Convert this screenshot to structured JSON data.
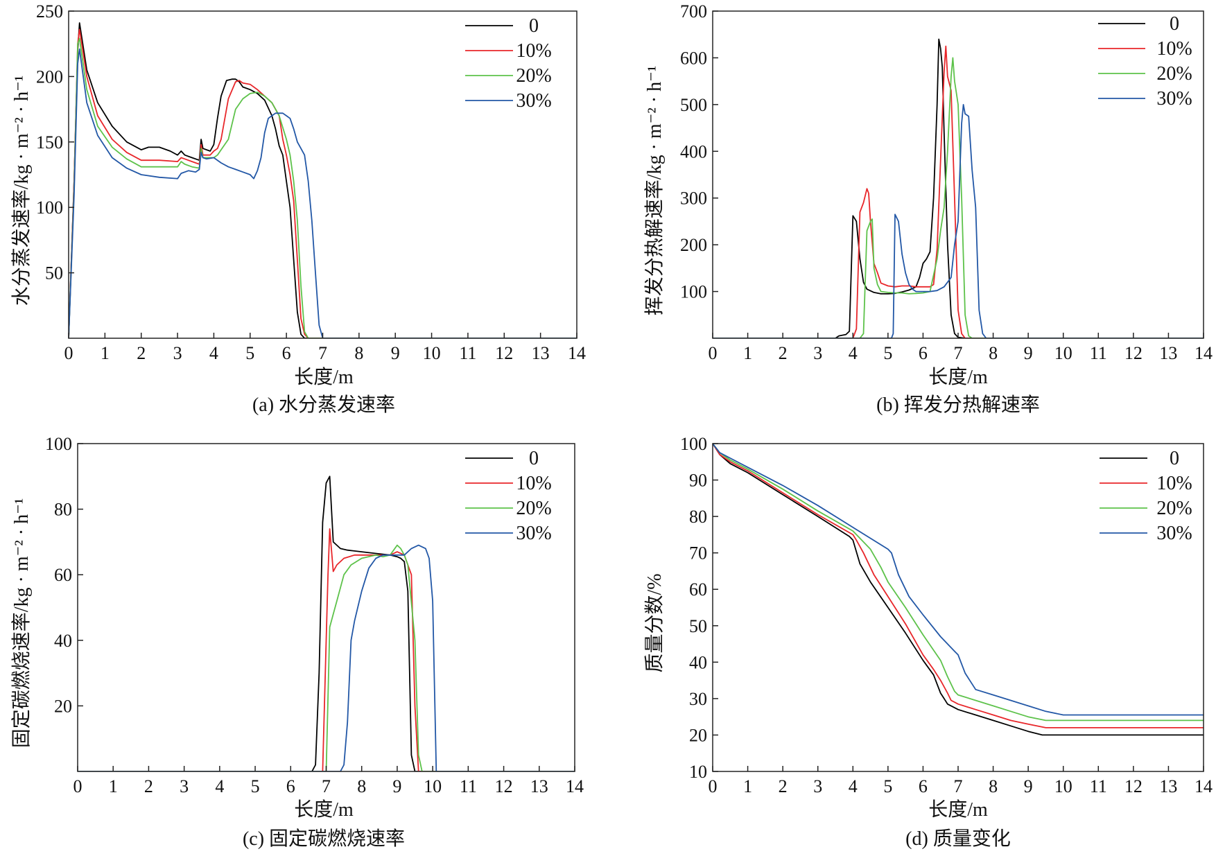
{
  "series_colors": [
    "#000000",
    "#e8262a",
    "#5dc24a",
    "#2257a6"
  ],
  "chart_data": [
    {
      "type": "line",
      "caption": "(a) 水分蒸发速率",
      "xlabel": "长度/m",
      "ylabel": "水分蒸发速率/kg · m⁻² · h⁻¹",
      "xlim": [
        0,
        14
      ],
      "ylim": [
        0,
        250
      ],
      "xticks": [
        0,
        1,
        2,
        3,
        4,
        5,
        6,
        7,
        8,
        9,
        10,
        11,
        12,
        13,
        14
      ],
      "yticks": [
        50,
        100,
        150,
        200,
        250
      ],
      "legend_position": "top-right",
      "series": [
        {
          "name": "0",
          "x": [
            0,
            0.15,
            0.25,
            0.3,
            0.5,
            0.8,
            1.2,
            1.6,
            2.0,
            2.2,
            2.5,
            2.8,
            3.0,
            3.1,
            3.2,
            3.4,
            3.6,
            3.65,
            3.7,
            3.8,
            3.9,
            4.0,
            4.1,
            4.2,
            4.35,
            4.5,
            4.6,
            4.7,
            4.8,
            5.0,
            5.2,
            5.4,
            5.6,
            5.7,
            5.8,
            5.9,
            6.0,
            6.1,
            6.2,
            6.3,
            6.4,
            6.5,
            6.8,
            14
          ],
          "y": [
            0,
            120,
            220,
            241,
            205,
            180,
            162,
            150,
            144,
            146,
            146,
            143,
            140,
            143,
            140,
            138,
            136,
            152,
            145,
            144,
            143,
            148,
            168,
            185,
            197,
            198,
            198,
            196,
            192,
            190,
            187,
            182,
            170,
            160,
            147,
            140,
            120,
            100,
            60,
            20,
            3,
            0,
            0,
            0
          ]
        },
        {
          "name": "10%",
          "x": [
            0,
            0.15,
            0.25,
            0.3,
            0.5,
            0.8,
            1.2,
            1.6,
            2.0,
            2.5,
            3.0,
            3.1,
            3.2,
            3.4,
            3.6,
            3.65,
            3.7,
            3.8,
            3.9,
            4.0,
            4.1,
            4.2,
            4.4,
            4.6,
            4.7,
            4.8,
            5.0,
            5.2,
            5.4,
            5.6,
            5.8,
            5.9,
            6.0,
            6.1,
            6.2,
            6.3,
            6.4,
            6.5,
            6.6,
            6.8,
            14
          ],
          "y": [
            0,
            120,
            225,
            236,
            200,
            170,
            152,
            142,
            136,
            136,
            135,
            138,
            137,
            135,
            133,
            148,
            140,
            140,
            140,
            143,
            145,
            152,
            183,
            196,
            197,
            195,
            194,
            190,
            185,
            180,
            170,
            152,
            140,
            125,
            105,
            60,
            15,
            3,
            0,
            0,
            0
          ]
        },
        {
          "name": "20%",
          "x": [
            0,
            0.15,
            0.25,
            0.3,
            0.5,
            0.8,
            1.2,
            1.6,
            2.0,
            2.5,
            3.0,
            3.1,
            3.2,
            3.4,
            3.6,
            3.65,
            3.7,
            3.9,
            4.0,
            4.1,
            4.2,
            4.4,
            4.6,
            4.8,
            5.0,
            5.2,
            5.4,
            5.6,
            5.8,
            6.0,
            6.1,
            6.2,
            6.3,
            6.4,
            6.5,
            6.6,
            6.7,
            6.8,
            14
          ],
          "y": [
            0,
            115,
            225,
            229,
            190,
            162,
            146,
            137,
            131,
            131,
            131,
            135,
            133,
            131,
            130,
            145,
            138,
            138,
            138,
            140,
            144,
            152,
            175,
            183,
            187,
            188,
            185,
            180,
            170,
            152,
            140,
            120,
            90,
            40,
            5,
            0,
            0,
            0,
            0
          ]
        },
        {
          "name": "30%",
          "x": [
            0,
            0.15,
            0.25,
            0.3,
            0.5,
            0.8,
            1.2,
            1.6,
            2.0,
            2.5,
            3.0,
            3.1,
            3.3,
            3.5,
            3.6,
            3.65,
            3.7,
            3.8,
            4.0,
            4.2,
            4.4,
            4.6,
            4.8,
            5.0,
            5.1,
            5.2,
            5.3,
            5.4,
            5.5,
            5.6,
            5.7,
            5.9,
            6.0,
            6.1,
            6.2,
            6.3,
            6.4,
            6.5,
            6.6,
            6.7,
            6.8,
            6.9,
            7.0,
            14
          ],
          "y": [
            0,
            110,
            210,
            221,
            180,
            155,
            138,
            130,
            125,
            123,
            122,
            126,
            128,
            127,
            129,
            142,
            138,
            137,
            138,
            134,
            131,
            129,
            127,
            125,
            122,
            128,
            138,
            157,
            168,
            170,
            172,
            172,
            170,
            168,
            160,
            150,
            145,
            140,
            120,
            90,
            50,
            10,
            0,
            0
          ]
        }
      ]
    },
    {
      "type": "line",
      "caption": "(b) 挥发分热解速率",
      "xlabel": "长度/m",
      "ylabel": "挥发分热解速率/kg · m⁻² · h⁻¹",
      "xlim": [
        0,
        14
      ],
      "ylim": [
        0,
        700
      ],
      "xticks": [
        0,
        1,
        2,
        3,
        4,
        5,
        6,
        7,
        8,
        9,
        10,
        11,
        12,
        13,
        14
      ],
      "yticks": [
        100,
        200,
        300,
        400,
        500,
        600,
        700
      ],
      "legend_position": "top-right",
      "series": [
        {
          "name": "0",
          "x": [
            0,
            3.5,
            3.6,
            3.8,
            3.9,
            4.0,
            4.1,
            4.2,
            4.3,
            4.4,
            4.6,
            4.8,
            5.0,
            5.2,
            5.4,
            5.6,
            5.8,
            5.9,
            6.0,
            6.1,
            6.2,
            6.3,
            6.4,
            6.45,
            6.5,
            6.55,
            6.6,
            6.7,
            6.8,
            6.9,
            7.0,
            7.2,
            14
          ],
          "y": [
            0,
            0,
            5,
            8,
            15,
            262,
            250,
            170,
            120,
            105,
            98,
            95,
            95,
            96,
            99,
            103,
            110,
            130,
            160,
            170,
            185,
            300,
            500,
            640,
            620,
            580,
            440,
            200,
            50,
            10,
            2,
            0,
            0
          ]
        },
        {
          "name": "10%",
          "x": [
            0,
            4.0,
            4.1,
            4.2,
            4.3,
            4.4,
            4.45,
            4.5,
            4.6,
            4.7,
            4.8,
            5.0,
            5.2,
            5.4,
            5.6,
            5.8,
            6.0,
            6.2,
            6.3,
            6.4,
            6.5,
            6.6,
            6.65,
            6.7,
            6.8,
            6.9,
            7.0,
            7.1,
            7.2,
            14
          ],
          "y": [
            0,
            0,
            20,
            270,
            290,
            320,
            310,
            250,
            160,
            140,
            118,
            112,
            110,
            112,
            112,
            110,
            110,
            110,
            115,
            190,
            380,
            570,
            625,
            560,
            530,
            300,
            60,
            10,
            0,
            0
          ]
        },
        {
          "name": "20%",
          "x": [
            0,
            4.2,
            4.3,
            4.4,
            4.5,
            4.55,
            4.6,
            4.7,
            4.8,
            5.0,
            5.2,
            5.4,
            5.6,
            5.8,
            6.0,
            6.2,
            6.4,
            6.5,
            6.6,
            6.7,
            6.8,
            6.85,
            6.9,
            6.95,
            7.0,
            7.1,
            7.2,
            7.3,
            7.4,
            14
          ],
          "y": [
            0,
            0,
            10,
            230,
            250,
            255,
            150,
            115,
            100,
            98,
            97,
            97,
            95,
            96,
            97,
            100,
            170,
            230,
            280,
            400,
            560,
            600,
            550,
            525,
            500,
            300,
            50,
            5,
            0,
            0
          ]
        },
        {
          "name": "30%",
          "x": [
            0,
            5.1,
            5.15,
            5.2,
            5.3,
            5.4,
            5.5,
            5.6,
            5.7,
            5.8,
            6.0,
            6.2,
            6.4,
            6.6,
            6.8,
            6.9,
            7.0,
            7.1,
            7.15,
            7.2,
            7.3,
            7.4,
            7.5,
            7.6,
            7.7,
            7.8,
            14
          ],
          "y": [
            0,
            0,
            10,
            265,
            250,
            180,
            140,
            115,
            105,
            100,
            100,
            100,
            102,
            110,
            130,
            200,
            250,
            460,
            500,
            480,
            475,
            360,
            280,
            60,
            10,
            0,
            0
          ]
        }
      ]
    },
    {
      "type": "line",
      "caption": "(c) 固定碳燃烧速率",
      "xlabel": "长度/m",
      "ylabel": "固定碳燃烧速率/kg · m⁻² · h⁻¹",
      "xlim": [
        0,
        14
      ],
      "ylim": [
        0,
        100
      ],
      "xticks": [
        0,
        1,
        2,
        3,
        4,
        5,
        6,
        7,
        8,
        9,
        10,
        11,
        12,
        13,
        14
      ],
      "yticks": [
        20,
        40,
        60,
        80,
        100
      ],
      "legend_position": "top-right",
      "series": [
        {
          "name": "0",
          "x": [
            0,
            6.6,
            6.7,
            6.8,
            6.9,
            7.0,
            7.1,
            7.2,
            7.4,
            7.6,
            8.0,
            8.4,
            8.8,
            9.0,
            9.1,
            9.2,
            9.3,
            9.4,
            9.5,
            14
          ],
          "y": [
            0,
            0,
            2,
            30,
            76,
            88,
            90,
            70,
            68,
            67.5,
            67,
            66.5,
            66,
            65.5,
            65,
            64,
            55,
            5,
            0,
            0
          ]
        },
        {
          "name": "10%",
          "x": [
            0,
            6.9,
            7.0,
            7.05,
            7.1,
            7.2,
            7.3,
            7.5,
            7.8,
            8.0,
            8.4,
            8.8,
            9.0,
            9.2,
            9.4,
            9.5,
            9.6,
            9.7,
            14
          ],
          "y": [
            0,
            0,
            40,
            60,
            74,
            61,
            63,
            65,
            66,
            66,
            66,
            66,
            67,
            66,
            60,
            20,
            0,
            0,
            0
          ]
        },
        {
          "name": "20%",
          "x": [
            0,
            7.0,
            7.1,
            7.2,
            7.3,
            7.5,
            7.7,
            8.0,
            8.4,
            8.6,
            8.8,
            9.0,
            9.1,
            9.2,
            9.3,
            9.5,
            9.6,
            9.7,
            9.8,
            14
          ],
          "y": [
            0,
            0,
            44,
            48,
            52,
            60,
            63,
            65,
            66,
            65.5,
            66,
            69,
            68,
            66,
            63,
            40,
            5,
            0,
            0,
            0
          ]
        },
        {
          "name": "30%",
          "x": [
            0,
            7.4,
            7.5,
            7.6,
            7.7,
            7.8,
            8.0,
            8.2,
            8.4,
            8.6,
            8.8,
            9.0,
            9.2,
            9.4,
            9.6,
            9.8,
            9.9,
            10.0,
            10.1,
            14
          ],
          "y": [
            0,
            0,
            2,
            15,
            40,
            46,
            55,
            62,
            65,
            66,
            66,
            66,
            66,
            68,
            69,
            68,
            65,
            52,
            0,
            0
          ]
        }
      ]
    },
    {
      "type": "line",
      "caption": "(d) 质量变化",
      "xlabel": "长度/m",
      "ylabel": "质量分数/%",
      "xlim": [
        0,
        14
      ],
      "ylim": [
        10,
        100
      ],
      "xticks": [
        0,
        1,
        2,
        3,
        4,
        5,
        6,
        7,
        8,
        9,
        10,
        11,
        12,
        13,
        14
      ],
      "yticks": [
        10,
        20,
        30,
        40,
        50,
        60,
        70,
        80,
        90,
        100
      ],
      "legend_position": "top-right",
      "series": [
        {
          "name": "0",
          "x": [
            0,
            0.2,
            0.5,
            1,
            2,
            3,
            3.9,
            4.0,
            4.2,
            4.5,
            5.0,
            5.5,
            6.0,
            6.3,
            6.5,
            6.6,
            6.7,
            6.8,
            7.0,
            7.5,
            8,
            8.5,
            9,
            9.4,
            10,
            12,
            14
          ],
          "y": [
            100,
            97,
            94.5,
            92,
            86,
            80,
            74.5,
            73.5,
            67,
            62,
            55,
            48,
            40.5,
            36.5,
            31.5,
            30,
            28.5,
            28,
            27,
            25.5,
            24,
            22.5,
            21,
            20,
            20,
            20,
            20
          ]
        },
        {
          "name": "10%",
          "x": [
            0,
            0.2,
            0.5,
            1,
            2,
            3,
            4.0,
            4.1,
            4.3,
            4.6,
            5.0,
            5.5,
            6.0,
            6.3,
            6.5,
            6.7,
            6.8,
            6.9,
            7.0,
            7.5,
            8,
            8.5,
            9,
            9.5,
            10,
            12,
            14
          ],
          "y": [
            100,
            97,
            95,
            92.5,
            86.5,
            80.5,
            75,
            73.5,
            70,
            64,
            58,
            50.5,
            42,
            38,
            35,
            31.5,
            29.5,
            29,
            28.5,
            27,
            25.5,
            24,
            23,
            22,
            22,
            22,
            22
          ]
        },
        {
          "name": "20%",
          "x": [
            0,
            0.2,
            0.5,
            1,
            2,
            3,
            4.0,
            4.3,
            4.5,
            4.8,
            5.0,
            5.5,
            6.0,
            6.5,
            6.7,
            6.9,
            7.0,
            7.5,
            8,
            8.5,
            9,
            9.5,
            10,
            12,
            14
          ],
          "y": [
            100,
            97.5,
            95.5,
            93,
            87.5,
            81.5,
            76,
            73,
            71,
            66,
            62,
            55,
            47.5,
            40.5,
            36,
            32,
            31,
            29.5,
            28,
            26.5,
            25,
            24,
            24,
            24,
            24
          ]
        },
        {
          "name": "30%",
          "x": [
            0,
            0.2,
            0.5,
            1,
            2,
            3,
            4.0,
            4.5,
            5.0,
            5.1,
            5.3,
            5.6,
            6.0,
            6.5,
            6.9,
            7.0,
            7.2,
            7.5,
            8,
            8.5,
            9,
            9.5,
            10,
            12,
            14
          ],
          "y": [
            100,
            97.5,
            96,
            93.5,
            88.5,
            83,
            77,
            74,
            71,
            70,
            64,
            58,
            53,
            47,
            43,
            42,
            37,
            32.5,
            31,
            29.5,
            28,
            26.5,
            25.5,
            25.5,
            25.5
          ]
        }
      ]
    }
  ]
}
